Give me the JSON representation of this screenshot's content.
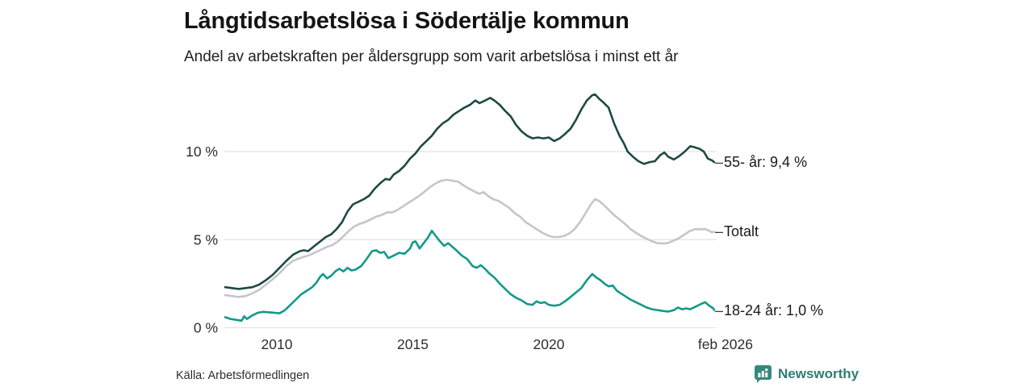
{
  "header": {
    "title": "Långtidsarbetslösa i Södertälje kommun",
    "subtitle": "Andel av arbetskraften per åldersgrupp som varit arbetslösa i minst ett år"
  },
  "footer": {
    "source": "Källa: Arbetsförmedlingen",
    "brand": "Newsworthy",
    "brand_icon": "bar-chart-bubble-icon",
    "brand_color": "#35897c",
    "brand_text_color": "#2f7d72"
  },
  "chart_data": {
    "type": "line",
    "title": "Långtidsarbetslösa i Södertälje kommun",
    "subtitle": "Andel av arbetskraften per åldersgrupp som varit arbetslösa i minst ett år",
    "xlabel": "",
    "ylabel": "",
    "grid": "horizontal",
    "legend_position": "right-of-line-ends",
    "x_range": [
      2008.1,
      2026.08
    ],
    "ylim": [
      0,
      14
    ],
    "grid_color": "#e3e3e5",
    "tick_color": "#2e2e2e",
    "y_ticks": [
      {
        "value": 0,
        "label": "0 %"
      },
      {
        "value": 5,
        "label": "5 %"
      },
      {
        "value": 10,
        "label": "10 %"
      }
    ],
    "x_ticks": [
      {
        "year": 2010,
        "label": "2010",
        "dx": 0
      },
      {
        "year": 2015,
        "label": "2015",
        "dx": 0
      },
      {
        "year": 2020,
        "label": "2020",
        "dx": 0
      },
      {
        "year": 2026.08,
        "label": "feb 2026",
        "dx": 14
      }
    ],
    "label_dash": "–",
    "series": [
      {
        "name": "55- år",
        "end_label": "55- år: 9,4 %",
        "end_value": "9,4 %",
        "color": "#1d4a43",
        "points": [
          [
            2008.1,
            2.3
          ],
          [
            2008.35,
            2.25
          ],
          [
            2008.6,
            2.2
          ],
          [
            2008.85,
            2.25
          ],
          [
            2009.1,
            2.3
          ],
          [
            2009.35,
            2.45
          ],
          [
            2009.6,
            2.7
          ],
          [
            2009.85,
            3.0
          ],
          [
            2010.1,
            3.4
          ],
          [
            2010.35,
            3.8
          ],
          [
            2010.6,
            4.15
          ],
          [
            2010.85,
            4.35
          ],
          [
            2011.0,
            4.4
          ],
          [
            2011.15,
            4.35
          ],
          [
            2011.35,
            4.6
          ],
          [
            2011.6,
            4.9
          ],
          [
            2011.8,
            5.15
          ],
          [
            2012.0,
            5.3
          ],
          [
            2012.2,
            5.6
          ],
          [
            2012.4,
            6.0
          ],
          [
            2012.6,
            6.6
          ],
          [
            2012.8,
            7.0
          ],
          [
            2013.0,
            7.15
          ],
          [
            2013.2,
            7.3
          ],
          [
            2013.4,
            7.5
          ],
          [
            2013.6,
            7.9
          ],
          [
            2013.8,
            8.2
          ],
          [
            2014.0,
            8.45
          ],
          [
            2014.15,
            8.4
          ],
          [
            2014.3,
            8.7
          ],
          [
            2014.5,
            8.9
          ],
          [
            2014.7,
            9.2
          ],
          [
            2014.9,
            9.6
          ],
          [
            2015.1,
            9.9
          ],
          [
            2015.3,
            10.3
          ],
          [
            2015.5,
            10.6
          ],
          [
            2015.7,
            10.9
          ],
          [
            2015.9,
            11.3
          ],
          [
            2016.1,
            11.6
          ],
          [
            2016.3,
            11.8
          ],
          [
            2016.5,
            12.1
          ],
          [
            2016.7,
            12.3
          ],
          [
            2016.9,
            12.5
          ],
          [
            2017.1,
            12.65
          ],
          [
            2017.3,
            12.9
          ],
          [
            2017.45,
            12.75
          ],
          [
            2017.6,
            12.85
          ],
          [
            2017.85,
            13.05
          ],
          [
            2018.0,
            12.9
          ],
          [
            2018.2,
            12.65
          ],
          [
            2018.4,
            12.3
          ],
          [
            2018.6,
            12.0
          ],
          [
            2018.8,
            11.5
          ],
          [
            2019.0,
            11.15
          ],
          [
            2019.2,
            10.9
          ],
          [
            2019.4,
            10.75
          ],
          [
            2019.6,
            10.8
          ],
          [
            2019.8,
            10.75
          ],
          [
            2020.0,
            10.8
          ],
          [
            2020.2,
            10.6
          ],
          [
            2020.4,
            10.75
          ],
          [
            2020.6,
            11.0
          ],
          [
            2020.8,
            11.3
          ],
          [
            2021.0,
            11.8
          ],
          [
            2021.2,
            12.4
          ],
          [
            2021.4,
            12.9
          ],
          [
            2021.6,
            13.2
          ],
          [
            2021.7,
            13.25
          ],
          [
            2021.85,
            13.0
          ],
          [
            2022.0,
            12.8
          ],
          [
            2022.2,
            12.5
          ],
          [
            2022.4,
            11.6
          ],
          [
            2022.6,
            10.9
          ],
          [
            2022.75,
            10.5
          ],
          [
            2022.9,
            10.0
          ],
          [
            2023.1,
            9.7
          ],
          [
            2023.3,
            9.45
          ],
          [
            2023.5,
            9.3
          ],
          [
            2023.7,
            9.4
          ],
          [
            2023.9,
            9.45
          ],
          [
            2024.1,
            9.8
          ],
          [
            2024.25,
            9.95
          ],
          [
            2024.4,
            9.7
          ],
          [
            2024.6,
            9.55
          ],
          [
            2024.8,
            9.75
          ],
          [
            2025.0,
            10.0
          ],
          [
            2025.2,
            10.3
          ],
          [
            2025.35,
            10.25
          ],
          [
            2025.55,
            10.15
          ],
          [
            2025.7,
            10.0
          ],
          [
            2025.85,
            9.6
          ],
          [
            2026.0,
            9.5
          ],
          [
            2026.08,
            9.4
          ]
        ]
      },
      {
        "name": "Totalt",
        "end_label": "Totalt",
        "end_value": "",
        "color": "#c6c4cd",
        "points": [
          [
            2008.1,
            1.85
          ],
          [
            2008.35,
            1.8
          ],
          [
            2008.6,
            1.75
          ],
          [
            2008.85,
            1.8
          ],
          [
            2009.1,
            1.95
          ],
          [
            2009.35,
            2.15
          ],
          [
            2009.6,
            2.45
          ],
          [
            2009.85,
            2.75
          ],
          [
            2010.1,
            3.1
          ],
          [
            2010.35,
            3.5
          ],
          [
            2010.6,
            3.8
          ],
          [
            2010.85,
            3.95
          ],
          [
            2011.05,
            4.05
          ],
          [
            2011.25,
            4.15
          ],
          [
            2011.45,
            4.3
          ],
          [
            2011.65,
            4.45
          ],
          [
            2011.85,
            4.6
          ],
          [
            2012.05,
            4.7
          ],
          [
            2012.25,
            4.9
          ],
          [
            2012.45,
            5.2
          ],
          [
            2012.65,
            5.5
          ],
          [
            2012.85,
            5.75
          ],
          [
            2013.05,
            5.9
          ],
          [
            2013.25,
            6.0
          ],
          [
            2013.45,
            6.15
          ],
          [
            2013.65,
            6.3
          ],
          [
            2013.85,
            6.4
          ],
          [
            2014.05,
            6.55
          ],
          [
            2014.25,
            6.55
          ],
          [
            2014.45,
            6.7
          ],
          [
            2014.65,
            6.9
          ],
          [
            2014.85,
            7.1
          ],
          [
            2015.05,
            7.3
          ],
          [
            2015.25,
            7.5
          ],
          [
            2015.45,
            7.75
          ],
          [
            2015.65,
            8.0
          ],
          [
            2015.85,
            8.2
          ],
          [
            2016.05,
            8.35
          ],
          [
            2016.25,
            8.4
          ],
          [
            2016.45,
            8.35
          ],
          [
            2016.65,
            8.3
          ],
          [
            2016.85,
            8.1
          ],
          [
            2017.05,
            7.9
          ],
          [
            2017.25,
            7.75
          ],
          [
            2017.45,
            7.6
          ],
          [
            2017.6,
            7.7
          ],
          [
            2017.75,
            7.5
          ],
          [
            2017.95,
            7.3
          ],
          [
            2018.15,
            7.2
          ],
          [
            2018.35,
            7.0
          ],
          [
            2018.55,
            6.8
          ],
          [
            2018.75,
            6.5
          ],
          [
            2018.95,
            6.3
          ],
          [
            2019.15,
            6.0
          ],
          [
            2019.35,
            5.8
          ],
          [
            2019.55,
            5.6
          ],
          [
            2019.75,
            5.4
          ],
          [
            2019.95,
            5.25
          ],
          [
            2020.15,
            5.15
          ],
          [
            2020.35,
            5.15
          ],
          [
            2020.55,
            5.2
          ],
          [
            2020.75,
            5.35
          ],
          [
            2020.95,
            5.6
          ],
          [
            2021.15,
            6.0
          ],
          [
            2021.35,
            6.5
          ],
          [
            2021.55,
            7.0
          ],
          [
            2021.7,
            7.3
          ],
          [
            2021.85,
            7.2
          ],
          [
            2022.0,
            7.0
          ],
          [
            2022.2,
            6.7
          ],
          [
            2022.4,
            6.4
          ],
          [
            2022.6,
            6.15
          ],
          [
            2022.8,
            5.9
          ],
          [
            2023.0,
            5.6
          ],
          [
            2023.2,
            5.4
          ],
          [
            2023.4,
            5.2
          ],
          [
            2023.6,
            5.05
          ],
          [
            2023.8,
            4.9
          ],
          [
            2024.0,
            4.8
          ],
          [
            2024.2,
            4.78
          ],
          [
            2024.4,
            4.82
          ],
          [
            2024.6,
            4.95
          ],
          [
            2024.8,
            5.1
          ],
          [
            2025.0,
            5.3
          ],
          [
            2025.2,
            5.5
          ],
          [
            2025.4,
            5.6
          ],
          [
            2025.6,
            5.58
          ],
          [
            2025.75,
            5.6
          ],
          [
            2025.9,
            5.5
          ],
          [
            2026.0,
            5.42
          ],
          [
            2026.08,
            5.45
          ]
        ]
      },
      {
        "name": "18-24 år",
        "end_label": "18-24 år: 1,0 %",
        "end_value": "1,0 %",
        "color": "#13998a",
        "points": [
          [
            2008.1,
            0.6
          ],
          [
            2008.3,
            0.5
          ],
          [
            2008.5,
            0.45
          ],
          [
            2008.7,
            0.4
          ],
          [
            2008.8,
            0.65
          ],
          [
            2008.9,
            0.5
          ],
          [
            2009.1,
            0.7
          ],
          [
            2009.3,
            0.85
          ],
          [
            2009.5,
            0.9
          ],
          [
            2009.7,
            0.88
          ],
          [
            2009.9,
            0.85
          ],
          [
            2010.1,
            0.82
          ],
          [
            2010.3,
            1.0
          ],
          [
            2010.5,
            1.3
          ],
          [
            2010.7,
            1.6
          ],
          [
            2010.9,
            1.9
          ],
          [
            2011.1,
            2.1
          ],
          [
            2011.3,
            2.3
          ],
          [
            2011.45,
            2.55
          ],
          [
            2011.6,
            2.9
          ],
          [
            2011.7,
            3.05
          ],
          [
            2011.85,
            2.8
          ],
          [
            2012.0,
            2.95
          ],
          [
            2012.15,
            3.2
          ],
          [
            2012.3,
            3.35
          ],
          [
            2012.45,
            3.2
          ],
          [
            2012.6,
            3.4
          ],
          [
            2012.75,
            3.25
          ],
          [
            2012.9,
            3.3
          ],
          [
            2013.1,
            3.5
          ],
          [
            2013.3,
            3.9
          ],
          [
            2013.5,
            4.35
          ],
          [
            2013.65,
            4.4
          ],
          [
            2013.8,
            4.25
          ],
          [
            2013.95,
            4.3
          ],
          [
            2014.1,
            3.95
          ],
          [
            2014.3,
            4.1
          ],
          [
            2014.5,
            4.25
          ],
          [
            2014.7,
            4.2
          ],
          [
            2014.9,
            4.5
          ],
          [
            2015.0,
            4.85
          ],
          [
            2015.1,
            4.9
          ],
          [
            2015.25,
            4.5
          ],
          [
            2015.4,
            4.8
          ],
          [
            2015.55,
            5.1
          ],
          [
            2015.7,
            5.5
          ],
          [
            2015.85,
            5.2
          ],
          [
            2016.0,
            4.9
          ],
          [
            2016.15,
            4.65
          ],
          [
            2016.3,
            4.8
          ],
          [
            2016.45,
            4.6
          ],
          [
            2016.6,
            4.4
          ],
          [
            2016.8,
            4.1
          ],
          [
            2017.0,
            3.9
          ],
          [
            2017.2,
            3.5
          ],
          [
            2017.35,
            3.4
          ],
          [
            2017.5,
            3.55
          ],
          [
            2017.65,
            3.35
          ],
          [
            2017.8,
            3.1
          ],
          [
            2018.0,
            2.85
          ],
          [
            2018.2,
            2.5
          ],
          [
            2018.4,
            2.2
          ],
          [
            2018.6,
            1.9
          ],
          [
            2018.8,
            1.7
          ],
          [
            2019.0,
            1.55
          ],
          [
            2019.2,
            1.35
          ],
          [
            2019.4,
            1.3
          ],
          [
            2019.55,
            1.5
          ],
          [
            2019.7,
            1.4
          ],
          [
            2019.85,
            1.45
          ],
          [
            2020.0,
            1.3
          ],
          [
            2020.2,
            1.25
          ],
          [
            2020.4,
            1.3
          ],
          [
            2020.6,
            1.5
          ],
          [
            2020.8,
            1.75
          ],
          [
            2021.0,
            2.0
          ],
          [
            2021.2,
            2.25
          ],
          [
            2021.4,
            2.7
          ],
          [
            2021.6,
            3.05
          ],
          [
            2021.75,
            2.85
          ],
          [
            2021.9,
            2.7
          ],
          [
            2022.05,
            2.5
          ],
          [
            2022.2,
            2.35
          ],
          [
            2022.35,
            2.4
          ],
          [
            2022.5,
            2.1
          ],
          [
            2022.65,
            1.95
          ],
          [
            2022.8,
            1.8
          ],
          [
            2023.0,
            1.6
          ],
          [
            2023.2,
            1.45
          ],
          [
            2023.4,
            1.3
          ],
          [
            2023.6,
            1.15
          ],
          [
            2023.8,
            1.05
          ],
          [
            2024.0,
            1.0
          ],
          [
            2024.2,
            0.95
          ],
          [
            2024.4,
            0.92
          ],
          [
            2024.6,
            1.0
          ],
          [
            2024.75,
            1.15
          ],
          [
            2024.9,
            1.05
          ],
          [
            2025.05,
            1.1
          ],
          [
            2025.2,
            1.05
          ],
          [
            2025.4,
            1.2
          ],
          [
            2025.6,
            1.35
          ],
          [
            2025.75,
            1.45
          ],
          [
            2025.9,
            1.25
          ],
          [
            2026.05,
            1.1
          ],
          [
            2026.08,
            1.0
          ]
        ]
      }
    ]
  }
}
